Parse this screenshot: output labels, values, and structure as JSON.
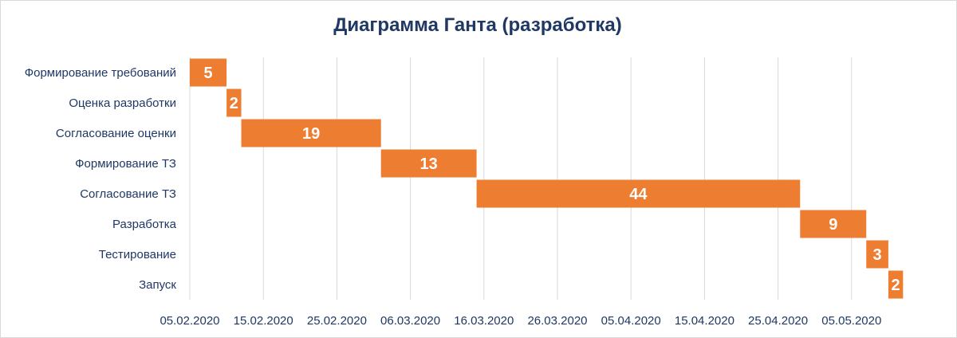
{
  "chart_data": {
    "type": "bar",
    "orientation": "horizontal",
    "stacked": true,
    "title": "Диаграмма Ганта (разработка)",
    "categories": [
      "Формирование требований",
      "Оценка разработки",
      "Согласование оценки",
      "Формирование ТЗ",
      "Согласование ТЗ",
      "Разработка",
      "Тестирование",
      "Запуск"
    ],
    "start_dates": [
      "2020-02-05",
      "2020-02-10",
      "2020-02-12",
      "2020-03-02",
      "2020-03-15",
      "2020-04-28",
      "2020-05-07",
      "2020-05-10"
    ],
    "durations": [
      5,
      2,
      19,
      13,
      44,
      9,
      3,
      2
    ],
    "x_tick_labels": [
      "05.02.2020",
      "15.02.2020",
      "25.02.2020",
      "06.03.2020",
      "16.03.2020",
      "26.03.2020",
      "05.04.2020",
      "15.04.2020",
      "25.04.2020",
      "05.05.2020"
    ],
    "xlim": [
      "2020-02-05",
      "2020-05-15"
    ],
    "bar_color": "#ed7d31",
    "grid": true,
    "legend": "none"
  },
  "colors": {
    "text": "#1f3864",
    "grid": "#d9d9d9",
    "bar": "#ed7d31",
    "bar_label": "#ffffff"
  }
}
